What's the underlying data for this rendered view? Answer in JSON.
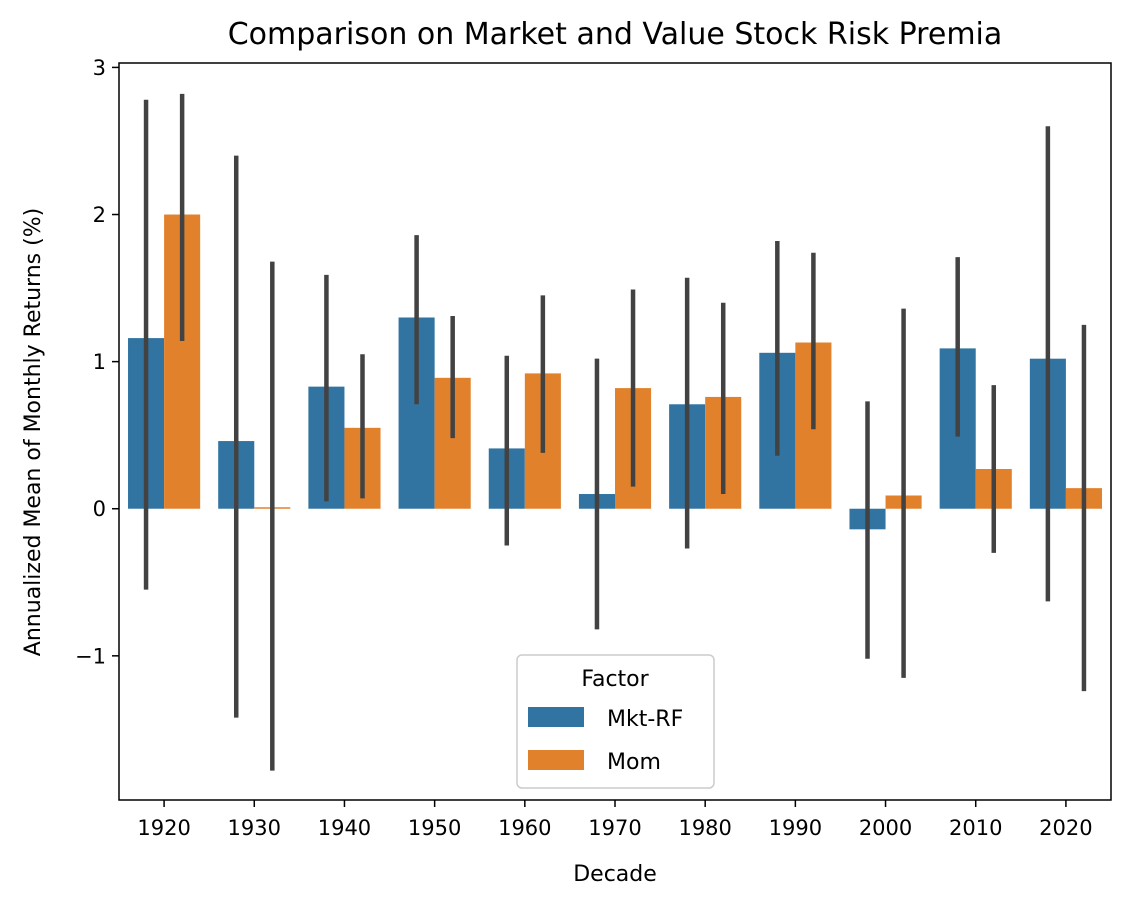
{
  "chart_data": {
    "type": "bar",
    "title": "Comparison on Market and Value Stock Risk Premia",
    "xlabel": "Decade",
    "ylabel": "Annualized Mean of Monthly Returns (%)",
    "categories": [
      "1920",
      "1930",
      "1940",
      "1950",
      "1960",
      "1970",
      "1980",
      "1990",
      "2000",
      "2010",
      "2020"
    ],
    "ylim": [
      -1.98,
      3.03
    ],
    "yticks": [
      -1,
      0,
      1,
      2,
      3
    ],
    "ytick_labels": [
      "−1",
      "0",
      "1",
      "2",
      "3"
    ],
    "grid": false,
    "legend": {
      "title": "Factor",
      "placement": "lower center"
    },
    "series": [
      {
        "name": "Mkt-RF",
        "color": "#3274a1",
        "values": [
          1.16,
          0.46,
          0.83,
          1.3,
          0.41,
          0.1,
          0.71,
          1.06,
          -0.14,
          1.09,
          1.02
        ],
        "ci_low": [
          -0.55,
          -1.42,
          0.05,
          0.71,
          -0.25,
          -0.82,
          -0.27,
          0.36,
          -1.02,
          0.49,
          -0.63
        ],
        "ci_high": [
          2.78,
          2.4,
          1.59,
          1.86,
          1.04,
          1.02,
          1.57,
          1.82,
          0.73,
          1.71,
          2.6
        ]
      },
      {
        "name": "Mom",
        "color": "#e1812c",
        "values": [
          2.0,
          0.01,
          0.55,
          0.89,
          0.92,
          0.82,
          0.76,
          1.13,
          0.09,
          0.27,
          0.14
        ],
        "ci_low": [
          1.14,
          -1.78,
          0.07,
          0.48,
          0.38,
          0.15,
          0.1,
          0.54,
          -1.15,
          -0.3,
          -1.24
        ],
        "ci_high": [
          2.82,
          1.68,
          1.05,
          1.31,
          1.45,
          1.49,
          1.4,
          1.74,
          1.36,
          0.84,
          1.25
        ]
      }
    ],
    "errorbar_color": "#424242"
  }
}
